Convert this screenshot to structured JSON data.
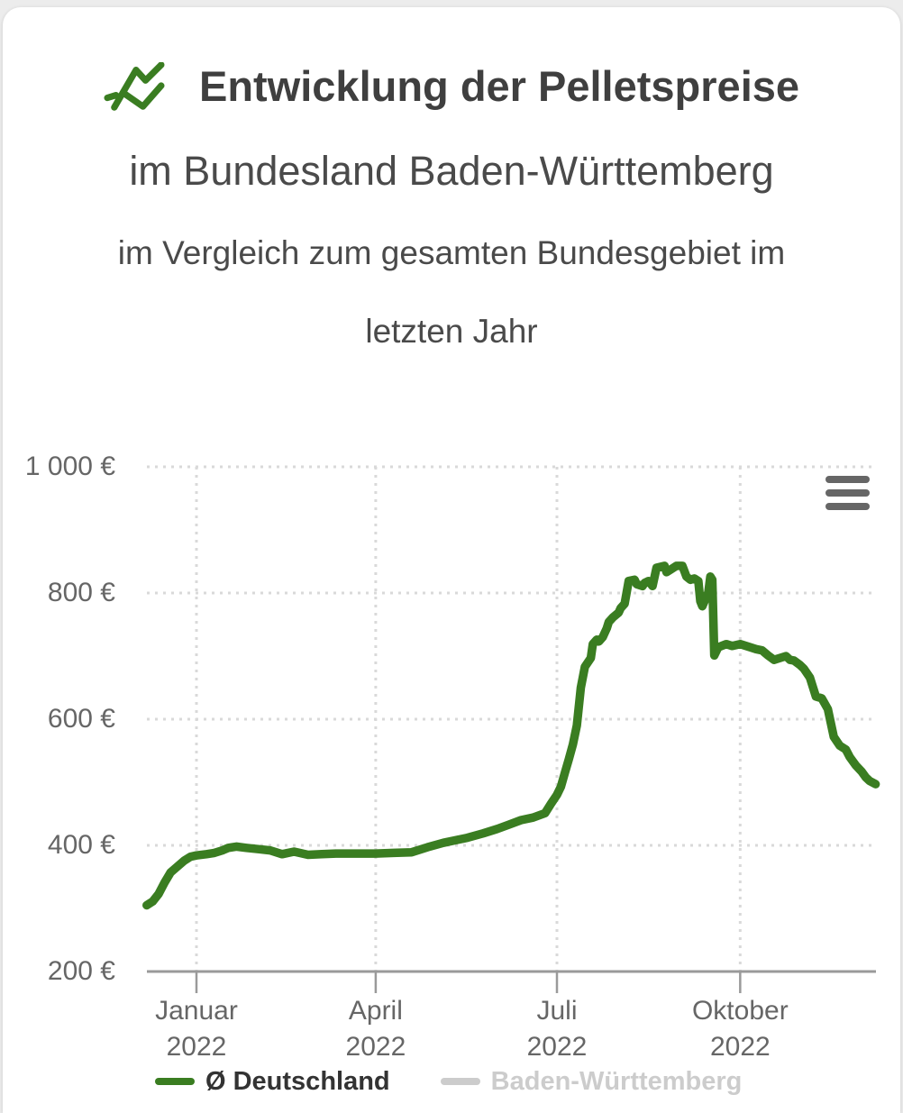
{
  "page": {
    "background_color": "#ececec",
    "card_color": "#ffffff"
  },
  "header": {
    "icon": {
      "name": "trend-line-icon",
      "color": "#3a7d21"
    },
    "title": "Entwicklung der Pelletspreise",
    "subtitle_region": "im Bundesland Baden-Württemberg",
    "subtitle_comparison": "im Vergleich zum gesamten Bundesgebiet im",
    "subtitle_period": "letzten Jahr"
  },
  "chart_controls": {
    "context_menu_icon": "hamburger-menu-icon",
    "context_menu_color": "#666666"
  },
  "chart_data": {
    "type": "line",
    "x_type": "date",
    "title": "",
    "xlabel": "",
    "ylabel": "",
    "ylim": [
      200,
      1000
    ],
    "xlim": [
      "2021-12-07",
      "2022-12-08"
    ],
    "grid": true,
    "grid_style": "dotted",
    "legend_position": "bottom",
    "axis_colors": {
      "label": "#666666",
      "grid": "#d9d9d9",
      "axis_line": "#9a9a9a"
    },
    "y_ticks": [
      {
        "value": 1000,
        "label": "1 000 €"
      },
      {
        "value": 800,
        "label": "800 €"
      },
      {
        "value": 600,
        "label": "600 €"
      },
      {
        "value": 400,
        "label": "400 €"
      },
      {
        "value": 200,
        "label": "200 €"
      }
    ],
    "x_ticks": [
      {
        "date": "2022-01-01",
        "lines": [
          "Januar",
          "2022"
        ]
      },
      {
        "date": "2022-04-01",
        "lines": [
          "April",
          "2022"
        ]
      },
      {
        "date": "2022-07-01",
        "lines": [
          "Juli",
          "2022"
        ]
      },
      {
        "date": "2022-10-01",
        "lines": [
          "Oktober",
          "2022"
        ]
      }
    ],
    "series": [
      {
        "name": "Ø Deutschland",
        "color": "#3a7d21",
        "label_color": "#333333",
        "visible": true,
        "points": [
          [
            "2021-12-07",
            305
          ],
          [
            "2021-12-10",
            311
          ],
          [
            "2021-12-13",
            323
          ],
          [
            "2021-12-16",
            341
          ],
          [
            "2021-12-19",
            357
          ],
          [
            "2021-12-23",
            368
          ],
          [
            "2021-12-26",
            376
          ],
          [
            "2021-12-29",
            382
          ],
          [
            "2022-01-01",
            384
          ],
          [
            "2022-01-06",
            386
          ],
          [
            "2022-01-10",
            388
          ],
          [
            "2022-01-14",
            392
          ],
          [
            "2022-01-17",
            396
          ],
          [
            "2022-01-21",
            398
          ],
          [
            "2022-01-26",
            396
          ],
          [
            "2022-02-01",
            394
          ],
          [
            "2022-02-07",
            392
          ],
          [
            "2022-02-13",
            386
          ],
          [
            "2022-02-19",
            390
          ],
          [
            "2022-02-26",
            385
          ],
          [
            "2022-03-05",
            386
          ],
          [
            "2022-03-12",
            387
          ],
          [
            "2022-03-21",
            387
          ],
          [
            "2022-04-01",
            387
          ],
          [
            "2022-04-10",
            388
          ],
          [
            "2022-04-19",
            389
          ],
          [
            "2022-04-27",
            397
          ],
          [
            "2022-05-05",
            404
          ],
          [
            "2022-05-11",
            408
          ],
          [
            "2022-05-17",
            412
          ],
          [
            "2022-05-25",
            419
          ],
          [
            "2022-06-01",
            426
          ],
          [
            "2022-06-07",
            433
          ],
          [
            "2022-06-13",
            440
          ],
          [
            "2022-06-19",
            444
          ],
          [
            "2022-06-25",
            451
          ],
          [
            "2022-06-28",
            466
          ],
          [
            "2022-07-01",
            480
          ],
          [
            "2022-07-03",
            493
          ],
          [
            "2022-07-05",
            515
          ],
          [
            "2022-07-07",
            537
          ],
          [
            "2022-07-09",
            560
          ],
          [
            "2022-07-11",
            590
          ],
          [
            "2022-07-13",
            650
          ],
          [
            "2022-07-15",
            683
          ],
          [
            "2022-07-18",
            697
          ],
          [
            "2022-07-19",
            719
          ],
          [
            "2022-07-21",
            726
          ],
          [
            "2022-07-22",
            723
          ],
          [
            "2022-07-24",
            730
          ],
          [
            "2022-07-26",
            744
          ],
          [
            "2022-07-27",
            754
          ],
          [
            "2022-07-29",
            761
          ],
          [
            "2022-08-01",
            769
          ],
          [
            "2022-08-02",
            776
          ],
          [
            "2022-08-04",
            783
          ],
          [
            "2022-08-06",
            819
          ],
          [
            "2022-08-09",
            821
          ],
          [
            "2022-08-10",
            814
          ],
          [
            "2022-08-13",
            811
          ],
          [
            "2022-08-14",
            816
          ],
          [
            "2022-08-16",
            819
          ],
          [
            "2022-08-18",
            811
          ],
          [
            "2022-08-20",
            840
          ],
          [
            "2022-08-24",
            843
          ],
          [
            "2022-08-25",
            833
          ],
          [
            "2022-08-27",
            837
          ],
          [
            "2022-08-30",
            843
          ],
          [
            "2022-09-02",
            843
          ],
          [
            "2022-09-04",
            826
          ],
          [
            "2022-09-06",
            821
          ],
          [
            "2022-09-08",
            823
          ],
          [
            "2022-09-10",
            819
          ],
          [
            "2022-09-11",
            787
          ],
          [
            "2022-09-12",
            779
          ],
          [
            "2022-09-14",
            794
          ],
          [
            "2022-09-15",
            801
          ],
          [
            "2022-09-16",
            826
          ],
          [
            "2022-09-17",
            821
          ],
          [
            "2022-09-18",
            701
          ],
          [
            "2022-09-20",
            714
          ],
          [
            "2022-09-24",
            719
          ],
          [
            "2022-09-27",
            716
          ],
          [
            "2022-10-01",
            719
          ],
          [
            "2022-10-06",
            714
          ],
          [
            "2022-10-09",
            711
          ],
          [
            "2022-10-12",
            709
          ],
          [
            "2022-10-15",
            701
          ],
          [
            "2022-10-18",
            694
          ],
          [
            "2022-10-21",
            697
          ],
          [
            "2022-10-24",
            700
          ],
          [
            "2022-10-26",
            694
          ],
          [
            "2022-10-28",
            693
          ],
          [
            "2022-10-31",
            686
          ],
          [
            "2022-11-02",
            680
          ],
          [
            "2022-11-05",
            666
          ],
          [
            "2022-11-08",
            636
          ],
          [
            "2022-11-11",
            633
          ],
          [
            "2022-11-14",
            616
          ],
          [
            "2022-11-17",
            572
          ],
          [
            "2022-11-20",
            558
          ],
          [
            "2022-11-23",
            552
          ],
          [
            "2022-11-25",
            540
          ],
          [
            "2022-11-28",
            527
          ],
          [
            "2022-12-01",
            517
          ],
          [
            "2022-12-03",
            508
          ],
          [
            "2022-12-05",
            502
          ],
          [
            "2022-12-08",
            497
          ]
        ]
      },
      {
        "name": "Baden-Württemberg",
        "color": "#cccccc",
        "label_color": "#cccccc",
        "visible": false,
        "points": []
      }
    ]
  }
}
